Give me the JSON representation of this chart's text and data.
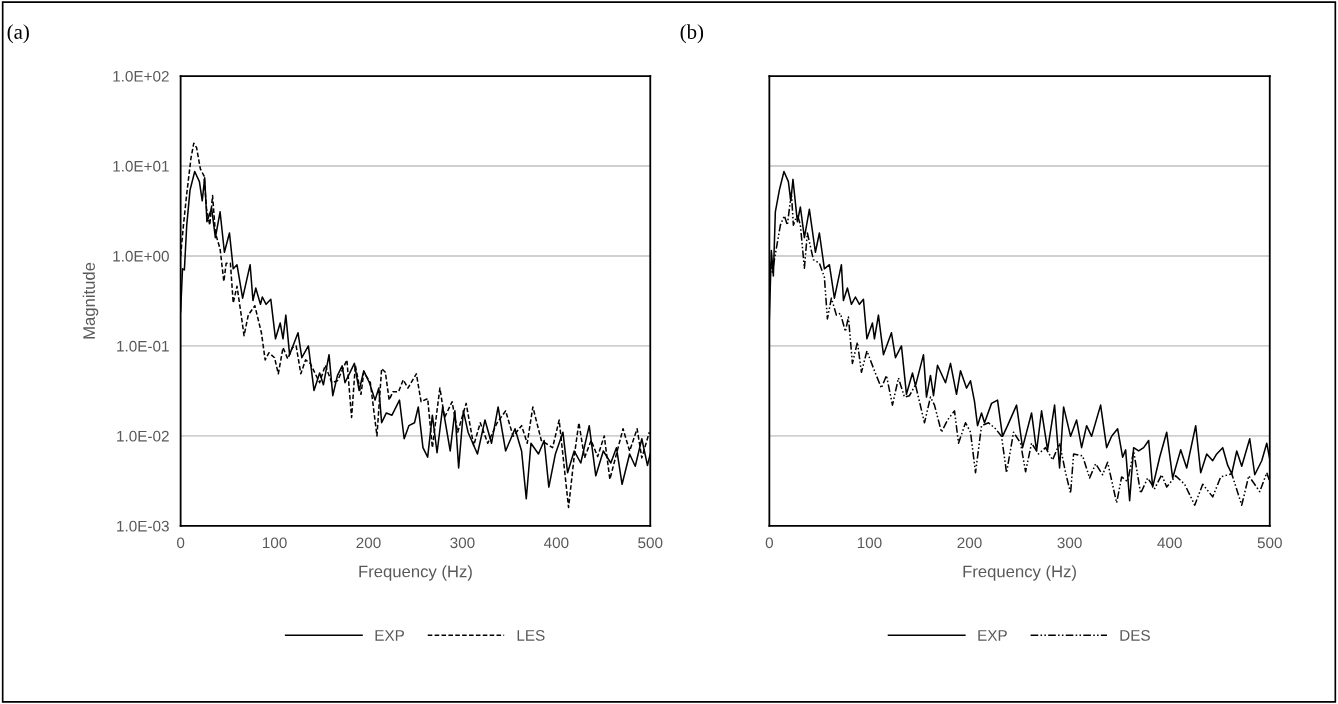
{
  "chart_data": [
    {
      "type": "line",
      "title": "(a)",
      "xlabel": "Frequency (Hz)",
      "ylabel": "Magnitude",
      "log": "y",
      "grid": "y",
      "legend": "bottom",
      "xlim": [
        0,
        500
      ],
      "xticks": [
        0,
        100,
        200,
        300,
        400,
        500
      ],
      "ylim": [
        0.001,
        100
      ],
      "yticks": [
        {
          "value": 0.001,
          "label": "1.0E-03"
        },
        {
          "value": 0.01,
          "label": "1.0E-02"
        },
        {
          "value": 0.1,
          "label": "1.0E-01"
        },
        {
          "value": 1,
          "label": "1.0E+00"
        },
        {
          "value": 10,
          "label": "1.0E+01"
        },
        {
          "value": 100,
          "label": "1.0E+02"
        }
      ],
      "series": [
        {
          "name": "EXP",
          "color": "#000000",
          "line_style": "solid",
          "x": [
            0,
            2,
            4,
            6.5,
            10,
            15,
            20,
            23,
            25.6,
            28,
            33,
            37,
            42,
            46.6,
            52,
            56,
            60,
            66,
            74,
            77,
            80,
            85,
            87,
            91,
            96,
            101,
            106,
            109,
            112,
            116,
            125,
            129,
            136,
            142,
            148,
            152,
            158,
            162,
            167,
            172,
            175,
            185,
            190,
            195,
            201,
            207,
            211,
            214,
            219,
            225,
            233,
            238,
            243,
            249,
            253,
            258,
            263,
            268,
            273,
            279,
            287,
            292,
            296,
            301,
            306,
            316,
            324,
            331,
            338,
            346,
            356,
            363,
            368,
            373,
            381,
            387,
            392,
            399,
            407,
            412,
            419,
            426,
            435,
            442,
            450,
            458,
            464,
            470,
            478,
            484,
            491,
            497,
            500
          ],
          "values": [
            0.24,
            0.72,
            0.7,
            2.2,
            5.4,
            8.7,
            6.7,
            4.1,
            7.4,
            2.4,
            3.4,
            1.6,
            3.1,
            1.1,
            1.8,
            0.72,
            0.8,
            0.34,
            0.8,
            0.32,
            0.44,
            0.29,
            0.35,
            0.29,
            0.33,
            0.12,
            0.18,
            0.12,
            0.22,
            0.08,
            0.14,
            0.074,
            0.1,
            0.032,
            0.05,
            0.037,
            0.08,
            0.028,
            0.047,
            0.06,
            0.039,
            0.064,
            0.032,
            0.053,
            0.039,
            0.025,
            0.034,
            0.014,
            0.018,
            0.017,
            0.025,
            0.0093,
            0.013,
            0.014,
            0.021,
            0.0074,
            0.0058,
            0.017,
            0.0065,
            0.021,
            0.0068,
            0.019,
            0.0044,
            0.019,
            0.011,
            0.0063,
            0.015,
            0.0083,
            0.021,
            0.0068,
            0.012,
            0.0068,
            0.002,
            0.0083,
            0.0063,
            0.0089,
            0.0027,
            0.0063,
            0.011,
            0.0039,
            0.0068,
            0.005,
            0.013,
            0.0036,
            0.0068,
            0.005,
            0.0074,
            0.0029,
            0.0063,
            0.0046,
            0.0093,
            0.0047,
            0.0063
          ]
        },
        {
          "name": "LES",
          "color": "#000000",
          "line_style": "dashed",
          "x": [
            0,
            3,
            6.5,
            11,
            14,
            17,
            21,
            25,
            27.5,
            31,
            34,
            37,
            42,
            46,
            48.5,
            53,
            56,
            60,
            64,
            67.5,
            72,
            79,
            86,
            90,
            94,
            100,
            104,
            109,
            114,
            119,
            123,
            128,
            133,
            138,
            148,
            154,
            161,
            167,
            177,
            182,
            186,
            192,
            195,
            202,
            209,
            214,
            218,
            222,
            226,
            232,
            237,
            242,
            251,
            256,
            263,
            268,
            276,
            281,
            289,
            295,
            304,
            312,
            319,
            327,
            337,
            346,
            354,
            363,
            369,
            375,
            384,
            396,
            403,
            413,
            419,
            424,
            430,
            437,
            444,
            451,
            457,
            464,
            471,
            478,
            486,
            491,
            499
          ],
          "values": [
            1.0,
            2.2,
            4.9,
            12.2,
            17.9,
            16,
            9.3,
            7.7,
            3.4,
            2.2,
            4.7,
            1.8,
            1.2,
            0.52,
            0.83,
            0.83,
            0.3,
            0.46,
            0.24,
            0.13,
            0.22,
            0.28,
            0.14,
            0.07,
            0.084,
            0.074,
            0.049,
            0.096,
            0.072,
            0.096,
            0.1,
            0.049,
            0.07,
            0.064,
            0.039,
            0.061,
            0.039,
            0.041,
            0.07,
            0.016,
            0.061,
            0.029,
            0.051,
            0.039,
            0.01,
            0.056,
            0.051,
            0.025,
            0.031,
            0.031,
            0.042,
            0.034,
            0.049,
            0.024,
            0.026,
            0.0074,
            0.034,
            0.016,
            0.024,
            0.011,
            0.023,
            0.0078,
            0.014,
            0.0083,
            0.014,
            0.019,
            0.0099,
            0.013,
            0.0083,
            0.021,
            0.0089,
            0.0074,
            0.015,
            0.0016,
            0.0059,
            0.014,
            0.0057,
            0.0089,
            0.0059,
            0.01,
            0.0033,
            0.0063,
            0.012,
            0.0068,
            0.012,
            0.0057,
            0.011
          ]
        }
      ]
    },
    {
      "type": "line",
      "title": "(b)",
      "xlabel": "Frequency (Hz)",
      "log": "y",
      "grid": "y",
      "legend": "bottom",
      "tick_labels": "x",
      "xlim": [
        0,
        500
      ],
      "xticks": [
        0,
        100,
        200,
        300,
        400,
        500
      ],
      "ylim": [
        0.001,
        100
      ],
      "yticks": [
        {
          "value": 0.001,
          "label": null
        },
        {
          "value": 0.01,
          "label": null
        },
        {
          "value": 0.1,
          "label": null
        },
        {
          "value": 1,
          "label": null
        },
        {
          "value": 10,
          "label": null
        },
        {
          "value": 100,
          "label": null
        }
      ],
      "series": [
        {
          "name": "EXP",
          "color": "#000000",
          "line_style": "solid",
          "x": [
            0,
            2,
            4,
            6,
            10,
            14.6,
            19,
            21.4,
            23.6,
            28,
            31,
            35,
            40,
            46,
            50,
            55,
            60,
            65,
            72,
            74,
            78,
            82,
            86,
            90,
            94,
            97.5,
            103,
            105,
            109,
            114,
            122,
            126,
            132,
            137,
            143,
            146,
            154,
            157,
            161,
            164,
            168,
            176,
            181,
            187,
            191,
            197,
            201,
            205,
            208,
            212,
            215,
            222,
            228,
            233,
            238,
            247,
            253,
            262,
            267,
            272,
            278,
            285,
            290,
            294,
            301,
            307,
            312,
            317,
            322,
            331,
            337,
            342,
            348,
            353,
            356,
            360,
            364,
            369,
            374,
            379,
            383,
            390,
            397,
            403,
            411,
            417,
            426,
            431,
            437,
            443,
            447,
            453,
            458,
            462,
            467,
            472,
            480,
            485,
            492,
            497,
            500
          ],
          "values": [
            0.2,
            1.15,
            0.6,
            3.1,
            5.4,
            8.7,
            6.7,
            4.1,
            7.1,
            2.4,
            3.5,
            1.6,
            3.3,
            1.1,
            1.8,
            0.72,
            0.8,
            0.34,
            0.8,
            0.32,
            0.44,
            0.29,
            0.35,
            0.29,
            0.33,
            0.12,
            0.18,
            0.12,
            0.22,
            0.08,
            0.14,
            0.074,
            0.1,
            0.029,
            0.05,
            0.036,
            0.08,
            0.027,
            0.047,
            0.028,
            0.061,
            0.039,
            0.064,
            0.029,
            0.053,
            0.034,
            0.041,
            0.024,
            0.013,
            0.018,
            0.014,
            0.023,
            0.025,
            0.0099,
            0.013,
            0.022,
            0.0074,
            0.018,
            0.0068,
            0.019,
            0.007,
            0.022,
            0.0044,
            0.021,
            0.0099,
            0.015,
            0.0074,
            0.013,
            0.0099,
            0.022,
            0.0074,
            0.0099,
            0.012,
            0.0058,
            0.007,
            0.0019,
            0.0074,
            0.0068,
            0.0074,
            0.0089,
            0.0027,
            0.0058,
            0.011,
            0.0034,
            0.007,
            0.0044,
            0.013,
            0.0039,
            0.0063,
            0.0053,
            0.0063,
            0.0074,
            0.0047,
            0.0038,
            0.0068,
            0.0046,
            0.0093,
            0.0037,
            0.0053,
            0.0083,
            0.0055
          ]
        },
        {
          "name": "DES",
          "color": "#000000",
          "line_style": "dashdot",
          "x": [
            0,
            3,
            6,
            11,
            15,
            18,
            22,
            24,
            28,
            31,
            35,
            38,
            44,
            50,
            55,
            58,
            62,
            67,
            71,
            76,
            79,
            83,
            88,
            92,
            97.5,
            105,
            112,
            117,
            123,
            129,
            135,
            140,
            146,
            155,
            161,
            165,
            172,
            178,
            185,
            189,
            196,
            201,
            206,
            212,
            219,
            226,
            232,
            237,
            244,
            251,
            256,
            262,
            269,
            276,
            283,
            290,
            296,
            301,
            304,
            313,
            320,
            326,
            333,
            338,
            347,
            352,
            358,
            364,
            371,
            378,
            385,
            392,
            397,
            406,
            415,
            425,
            433,
            443,
            451,
            462,
            472,
            479,
            490,
            497,
            500
          ],
          "values": [
            0.87,
            0.66,
            1.05,
            2.2,
            2.8,
            2.2,
            5.1,
            2.2,
            2.9,
            2.2,
            0.73,
            1.8,
            0.91,
            0.83,
            0.58,
            0.2,
            0.34,
            0.22,
            0.23,
            0.145,
            0.21,
            0.064,
            0.11,
            0.051,
            0.088,
            0.053,
            0.034,
            0.047,
            0.022,
            0.044,
            0.027,
            0.028,
            0.037,
            0.014,
            0.027,
            0.022,
            0.011,
            0.015,
            0.019,
            0.0083,
            0.014,
            0.011,
            0.0039,
            0.013,
            0.014,
            0.012,
            0.0099,
            0.0039,
            0.011,
            0.0083,
            0.004,
            0.0083,
            0.0063,
            0.0074,
            0.0054,
            0.0083,
            0.0039,
            0.0023,
            0.0063,
            0.006,
            0.0034,
            0.0049,
            0.0037,
            0.0051,
            0.0018,
            0.0035,
            0.0031,
            0.0068,
            0.0023,
            0.0034,
            0.0026,
            0.0037,
            0.0027,
            0.0036,
            0.0029,
            0.0017,
            0.0029,
            0.0021,
            0.0035,
            0.0038,
            0.0017,
            0.0036,
            0.0024,
            0.0039,
            0.0031
          ]
        }
      ]
    }
  ]
}
